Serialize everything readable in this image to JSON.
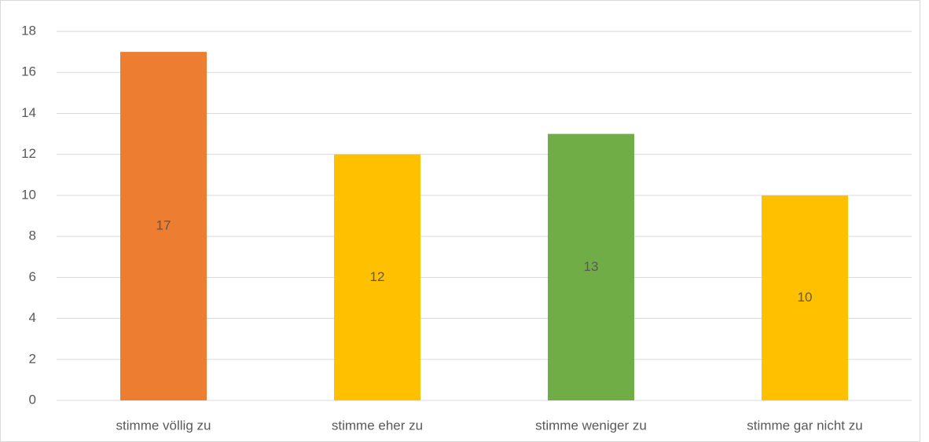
{
  "chart_data": {
    "type": "bar",
    "categories": [
      "stimme völlig zu",
      "stimme eher zu",
      "stimme weniger zu",
      "stimme gar nicht zu"
    ],
    "values": [
      17,
      12,
      13,
      10
    ],
    "colors": [
      "#ed7d31",
      "#ffc000",
      "#70ad47",
      "#ffc000"
    ],
    "ylim": [
      0,
      18
    ],
    "yticks": [
      0,
      2,
      4,
      6,
      8,
      10,
      12,
      14,
      16,
      18
    ],
    "grid": true
  }
}
